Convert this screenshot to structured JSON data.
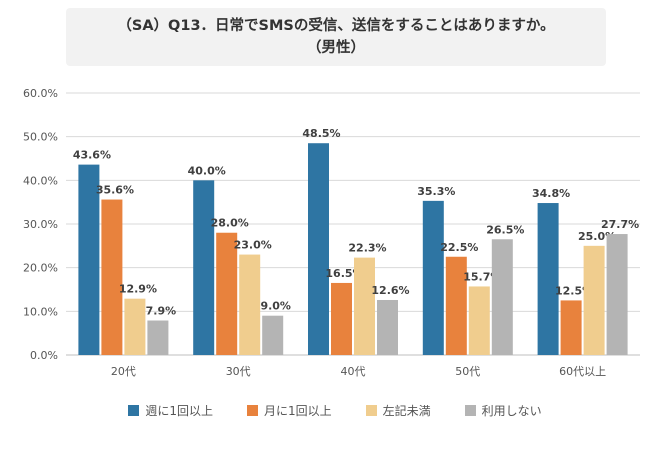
{
  "header": {
    "title_line1": "（SA）Q13．日常でSMSの受信、送信をすることはありますか。",
    "title_line2": "（男性）"
  },
  "colors": {
    "series": [
      "#2e75a3",
      "#e8823d",
      "#f0cd8e",
      "#b4b4b4"
    ],
    "grid": "#d9d9d9",
    "axis": "#bfbfbf"
  },
  "chart_data": {
    "type": "bar",
    "title": "（SA）Q13．日常でSMSの受信、送信をすることはありますか。（男性）",
    "categories": [
      "20代",
      "30代",
      "40代",
      "50代",
      "60代以上"
    ],
    "series": [
      {
        "name": "週に1回以上",
        "values": [
          43.6,
          40.0,
          48.5,
          35.3,
          34.8
        ]
      },
      {
        "name": "月に1回以上",
        "values": [
          35.6,
          28.0,
          16.5,
          22.5,
          12.5
        ]
      },
      {
        "name": "左記未満",
        "values": [
          12.9,
          23.0,
          22.3,
          15.7,
          25.0
        ]
      },
      {
        "name": "利用しない",
        "values": [
          7.9,
          9.0,
          12.6,
          26.5,
          27.7
        ]
      }
    ],
    "ylim": [
      0,
      60
    ],
    "yticks": [
      "0.0%",
      "10.0%",
      "20.0%",
      "30.0%",
      "40.0%",
      "50.0%",
      "60.0%"
    ],
    "value_suffix": "%",
    "grid": true,
    "legend": "bottom"
  }
}
